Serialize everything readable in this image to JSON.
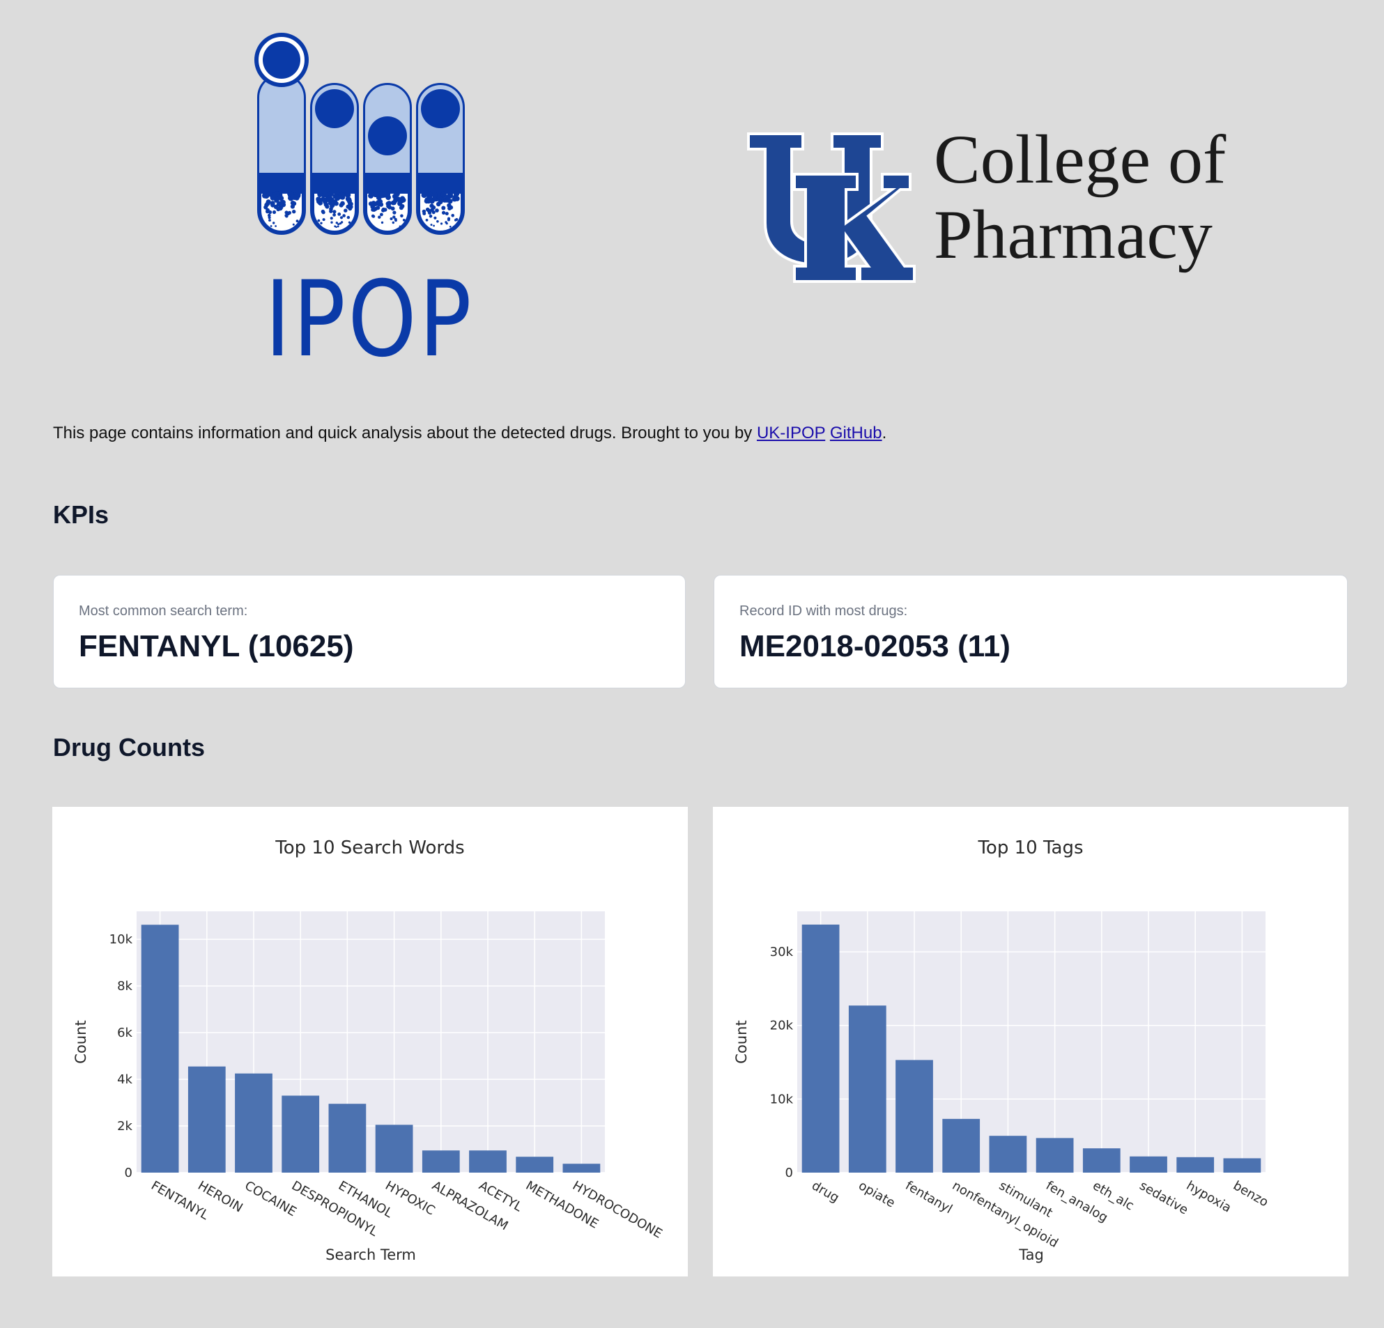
{
  "header": {
    "ipop_logo_text": "IPOP",
    "uk_logo_line1": "College of",
    "uk_logo_line2": "Pharmacy"
  },
  "intro": {
    "text": "This page contains information and quick analysis about the detected drugs. Brought to you by",
    "link1": "UK-IPOP",
    "link2": "GitHub",
    "suffix": "."
  },
  "sections": {
    "kpis": "KPIs",
    "drug_counts": "Drug Counts"
  },
  "kpis": [
    {
      "label": "Most common search term:",
      "value": "FENTANYL (10625)"
    },
    {
      "label": "Record ID with most drugs:",
      "value": "ME2018-02053 (11)"
    }
  ],
  "colors": {
    "bar": "#4c72b0",
    "plot_bg": "#eaeaf2",
    "ipop_blue": "#0a3aa8",
    "ipop_light": "#b3c8e8",
    "uk_blue": "#1e4694"
  },
  "chart_data": [
    {
      "type": "bar",
      "title": "Top 10 Search Words",
      "xlabel": "Search Term",
      "ylabel": "Count",
      "categories": [
        "FENTANYL",
        "HEROIN",
        "COCAINE",
        "DESPROPIONYL",
        "ETHANOL",
        "HYPOXIC",
        "ALPRAZOLAM",
        "ACETYL",
        "METHADONE",
        "HYDROCODONE"
      ],
      "values": [
        10625,
        4550,
        4250,
        3300,
        2950,
        2050,
        950,
        950,
        680,
        380
      ],
      "ylim": [
        0,
        11200
      ],
      "yticks": [
        0,
        2000,
        4000,
        6000,
        8000,
        10000
      ],
      "ytick_labels": [
        "0",
        "2k",
        "4k",
        "6k",
        "8k",
        "10k"
      ],
      "grid": true
    },
    {
      "type": "bar",
      "title": "Top 10 Tags",
      "xlabel": "Tag",
      "ylabel": "Count",
      "categories": [
        "drug",
        "opiate",
        "fentanyl",
        "nonfentanyl_opioid",
        "stimulant",
        "fen_analog",
        "eth_alc",
        "sedative",
        "hypoxia",
        "benzo"
      ],
      "values": [
        33700,
        22700,
        15300,
        7300,
        5000,
        4700,
        3300,
        2200,
        2100,
        1950
      ],
      "ylim": [
        0,
        35500
      ],
      "yticks": [
        0,
        10000,
        20000,
        30000
      ],
      "ytick_labels": [
        "0",
        "10k",
        "20k",
        "30k"
      ],
      "grid": true
    }
  ]
}
